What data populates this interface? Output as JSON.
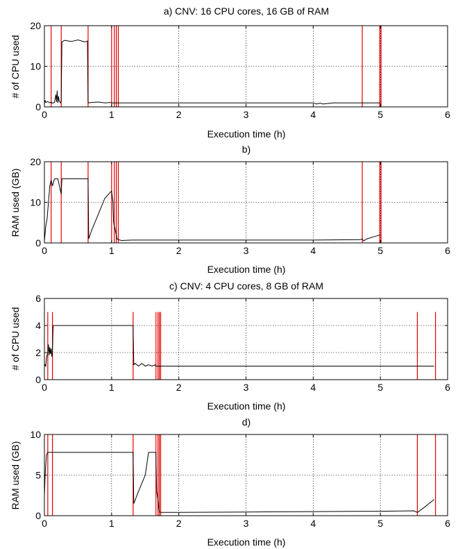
{
  "chart_data": [
    {
      "type": "line",
      "title": "a) CNV: 16 CPU cores, 16 GB of RAM",
      "xlabel": "Execution time (h)",
      "ylabel": "# of CPU used",
      "xlim": [
        0,
        6
      ],
      "ylim": [
        0,
        20
      ],
      "xticks": [
        "0",
        "1",
        "2",
        "3",
        "4",
        "5",
        "6"
      ],
      "yticks": [
        "0",
        "10",
        "20"
      ],
      "grid": true,
      "series": [
        {
          "color": "#000000",
          "x": [
            0,
            0.01,
            0.02,
            0.05,
            0.08,
            0.1,
            0.12,
            0.15,
            0.17,
            0.18,
            0.19,
            0.2,
            0.21,
            0.22,
            0.24,
            0.25,
            0.26,
            0.3,
            0.4,
            0.5,
            0.6,
            0.64,
            0.65,
            0.66,
            0.7,
            0.8,
            0.9,
            0.98,
            1.0,
            1.02,
            1.1,
            1.5,
            2.0,
            3.0,
            3.5,
            4.0,
            4.05,
            4.1,
            4.15,
            4.2,
            4.25,
            4.3,
            4.7,
            5.0
          ],
          "y": [
            0.8,
            1.6,
            1.1,
            1.3,
            1.0,
            1.2,
            0.9,
            1.1,
            3.0,
            1.2,
            4.0,
            1.0,
            2.6,
            1.4,
            1.0,
            1.5,
            16.0,
            16.4,
            16.1,
            16.5,
            16.0,
            16.2,
            1.2,
            1.0,
            1.1,
            1.2,
            1.0,
            1.1,
            1.0,
            1.0,
            1.0,
            1.0,
            1.0,
            1.0,
            1.0,
            1.0,
            0.7,
            0.9,
            0.7,
            0.8,
            0.9,
            1.0,
            1.0,
            1.0
          ]
        }
      ],
      "events_x": [
        0.1,
        0.25,
        0.65,
        1.0,
        1.04,
        1.07,
        1.1,
        4.73,
        4.99,
        5.01
      ]
    },
    {
      "type": "line",
      "title": "b)",
      "xlabel": "Execution time (h)",
      "ylabel": "RAM used (GB)",
      "xlim": [
        0,
        6
      ],
      "ylim": [
        0,
        20
      ],
      "xticks": [
        "0",
        "1",
        "2",
        "3",
        "4",
        "5",
        "6"
      ],
      "yticks": [
        "0",
        "10",
        "20"
      ],
      "grid": true,
      "series": [
        {
          "color": "#000000",
          "x": [
            0,
            0.02,
            0.04,
            0.06,
            0.08,
            0.1,
            0.12,
            0.15,
            0.2,
            0.25,
            0.26,
            0.3,
            0.4,
            0.5,
            0.6,
            0.65,
            0.66,
            0.7,
            0.8,
            0.9,
            1.0,
            1.02,
            1.03,
            1.05,
            1.08,
            1.1,
            1.15,
            1.3,
            2.0,
            3.0,
            4.0,
            4.7,
            4.73,
            4.75,
            4.8,
            4.9,
            5.0
          ],
          "y": [
            0.5,
            4.0,
            6.0,
            10.0,
            14.0,
            15.5,
            14.0,
            15.8,
            15.8,
            12.0,
            15.8,
            15.8,
            15.8,
            15.8,
            15.8,
            15.8,
            1.0,
            3.0,
            7.0,
            11.0,
            12.8,
            10.0,
            5.0,
            3.5,
            1.0,
            0.8,
            0.6,
            0.7,
            0.7,
            0.7,
            0.7,
            0.8,
            1.0,
            0.5,
            1.0,
            1.5,
            2.0
          ]
        }
      ],
      "events_x": [
        0.1,
        0.25,
        0.65,
        1.0,
        1.04,
        1.07,
        1.1,
        4.73,
        4.99,
        5.01
      ]
    },
    {
      "type": "line",
      "title": "c) CNV: 4 CPU cores, 8 GB of RAM",
      "xlabel": "Execution time (h)",
      "ylabel": "# of CPU used",
      "xlim": [
        0,
        6
      ],
      "ylim": [
        0,
        6
      ],
      "xticks": [
        "0",
        "1",
        "2",
        "3",
        "4",
        "5",
        "6"
      ],
      "yticks": [
        "0",
        "2",
        "4",
        "6"
      ],
      "grid": true,
      "series": [
        {
          "color": "#000000",
          "x": [
            0,
            0.01,
            0.02,
            0.03,
            0.05,
            0.06,
            0.07,
            0.08,
            0.09,
            0.1,
            0.11,
            0.12,
            0.13,
            0.2,
            0.5,
            1.0,
            1.32,
            1.33,
            1.35,
            1.4,
            1.45,
            1.5,
            1.55,
            1.6,
            1.65,
            1.66,
            1.7,
            2.0,
            3.0,
            4.0,
            5.0,
            5.8
          ],
          "y": [
            1.0,
            1.1,
            1.0,
            1.6,
            2.0,
            2.6,
            1.8,
            2.4,
            1.9,
            2.3,
            1.7,
            2.2,
            4.0,
            4.0,
            4.0,
            4.0,
            4.0,
            1.1,
            1.2,
            1.0,
            1.2,
            1.0,
            1.1,
            1.0,
            1.1,
            1.0,
            1.0,
            1.0,
            1.0,
            1.0,
            1.0,
            1.0
          ]
        }
      ],
      "events_x": [
        0.05,
        0.12,
        1.32,
        1.66,
        1.69,
        1.71,
        1.73,
        5.55,
        5.82
      ]
    },
    {
      "type": "line",
      "title": "d)",
      "xlabel": "Execution time (h)",
      "ylabel": "RAM used (GB)",
      "xlim": [
        0,
        6
      ],
      "ylim": [
        0,
        10
      ],
      "xticks": [
        "0",
        "1",
        "2",
        "3",
        "4",
        "5",
        "6"
      ],
      "yticks": [
        "0",
        "5",
        "10"
      ],
      "grid": true,
      "series": [
        {
          "color": "#000000",
          "x": [
            0,
            0.01,
            0.03,
            0.05,
            0.07,
            0.1,
            0.2,
            0.5,
            1.0,
            1.3,
            1.32,
            1.33,
            1.4,
            1.5,
            1.55,
            1.6,
            1.66,
            1.67,
            1.69,
            1.71,
            1.73,
            1.8,
            2.0,
            3.0,
            4.0,
            5.0,
            5.5,
            5.55,
            5.65,
            5.8
          ],
          "y": [
            2.5,
            5.0,
            7.5,
            7.8,
            7.8,
            7.8,
            7.8,
            7.8,
            7.8,
            7.8,
            7.8,
            1.5,
            3.0,
            5.0,
            7.8,
            7.8,
            7.8,
            3.0,
            2.0,
            0.5,
            0.4,
            0.4,
            0.4,
            0.45,
            0.5,
            0.55,
            0.6,
            0.4,
            1.0,
            2.0
          ]
        }
      ],
      "events_x": [
        0.05,
        0.12,
        1.32,
        1.66,
        1.69,
        1.71,
        1.73,
        5.55,
        5.82
      ]
    }
  ]
}
